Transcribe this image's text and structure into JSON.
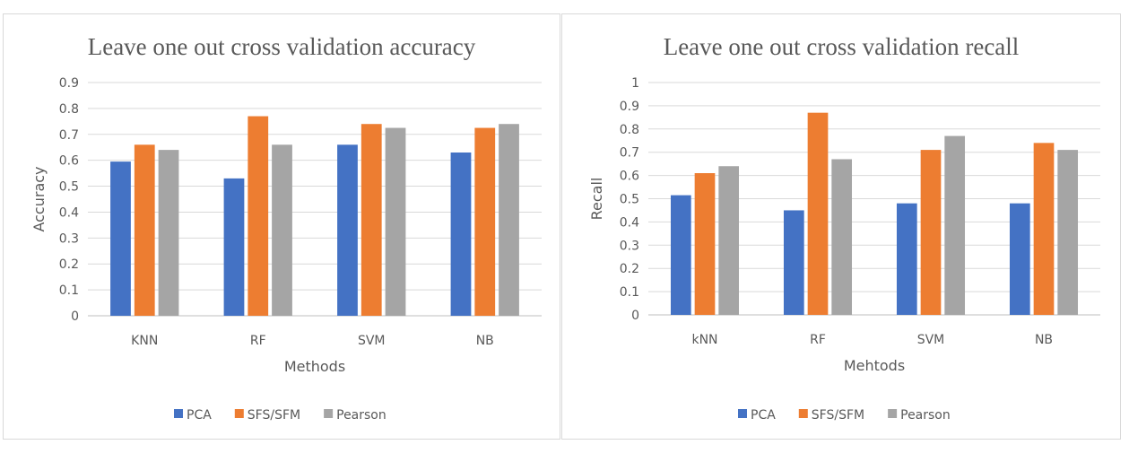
{
  "chart_data": [
    {
      "type": "bar",
      "title": "Leave one out cross validation accuracy",
      "xlabel": "Methods",
      "ylabel": "Accuracy",
      "ylim": [
        0,
        0.9
      ],
      "yticks": [
        "0",
        "0.1",
        "0.2",
        "0.3",
        "0.4",
        "0.5",
        "0.6",
        "0.7",
        "0.8",
        "0.9"
      ],
      "categories": [
        "KNN",
        "RF",
        "SVM",
        "NB"
      ],
      "series": [
        {
          "name": "PCA",
          "color": "#4472C4",
          "values": [
            0.595,
            0.53,
            0.66,
            0.63
          ]
        },
        {
          "name": "SFS/SFM",
          "color": "#ED7D31",
          "values": [
            0.66,
            0.77,
            0.74,
            0.725
          ]
        },
        {
          "name": "Pearson",
          "color": "#A5A5A5",
          "values": [
            0.64,
            0.66,
            0.725,
            0.74
          ]
        }
      ],
      "grid": true,
      "legend": "bottom"
    },
    {
      "type": "bar",
      "title": "Leave one out cross validation recall",
      "xlabel": "Mehtods",
      "ylabel": "Recall",
      "ylim": [
        0,
        1
      ],
      "yticks": [
        "0",
        "0.1",
        "0.2",
        "0.3",
        "0.4",
        "0.5",
        "0.6",
        "0.7",
        "0.8",
        "0.9",
        "1"
      ],
      "categories": [
        "kNN",
        "RF",
        "SVM",
        "NB"
      ],
      "series": [
        {
          "name": "PCA",
          "color": "#4472C4",
          "values": [
            0.515,
            0.45,
            0.48,
            0.48
          ]
        },
        {
          "name": "SFS/SFM",
          "color": "#ED7D31",
          "values": [
            0.61,
            0.87,
            0.71,
            0.74
          ]
        },
        {
          "name": "Pearson",
          "color": "#A5A5A5",
          "values": [
            0.64,
            0.67,
            0.77,
            0.71
          ]
        }
      ],
      "grid": true,
      "legend": "bottom"
    }
  ]
}
